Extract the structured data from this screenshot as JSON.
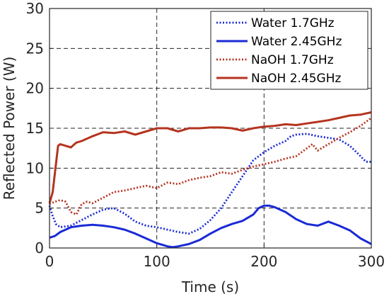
{
  "chart_data": {
    "type": "line",
    "title": "",
    "xlabel": "Time (s)",
    "ylabel": "Reflected Power (W)",
    "xlim": [
      0,
      300
    ],
    "ylim": [
      0,
      30
    ],
    "xticks": [
      0,
      100,
      200,
      300
    ],
    "yticks": [
      0,
      5,
      10,
      15,
      20,
      25,
      30
    ],
    "grid": true,
    "legend_position": "top-right",
    "series": [
      {
        "name": "Water 1.7GHz",
        "color": "#1a2bd6",
        "style": "dotted",
        "x": [
          0,
          3,
          6,
          10,
          20,
          30,
          40,
          50,
          60,
          70,
          80,
          90,
          100,
          110,
          120,
          130,
          140,
          150,
          160,
          170,
          180,
          190,
          200,
          210,
          220,
          225,
          230,
          240,
          250,
          260,
          270,
          280,
          290,
          295,
          300
        ],
        "y": [
          5.3,
          4.0,
          3.0,
          2.6,
          2.8,
          3.5,
          4.2,
          4.8,
          5.0,
          4.3,
          3.3,
          2.8,
          2.6,
          2.3,
          2.0,
          1.8,
          2.4,
          3.5,
          5.0,
          7.0,
          9.0,
          11.0,
          12.0,
          12.8,
          13.4,
          14.0,
          14.2,
          14.3,
          14.0,
          13.8,
          13.6,
          12.8,
          11.5,
          10.8,
          10.8
        ]
      },
      {
        "name": "Water 2.45GHz",
        "color": "#1a2bd6",
        "style": "solid",
        "x": [
          0,
          5,
          10,
          20,
          30,
          40,
          50,
          60,
          70,
          80,
          90,
          100,
          110,
          115,
          120,
          130,
          140,
          150,
          160,
          170,
          180,
          190,
          195,
          200,
          205,
          210,
          220,
          230,
          240,
          250,
          260,
          270,
          280,
          290,
          300
        ],
        "y": [
          1.3,
          1.5,
          2.0,
          2.6,
          2.8,
          2.9,
          2.8,
          2.6,
          2.3,
          1.8,
          1.2,
          0.6,
          0.2,
          0.1,
          0.2,
          0.5,
          1.0,
          1.8,
          2.5,
          3.0,
          3.4,
          4.2,
          5.0,
          5.3,
          5.3,
          5.1,
          4.5,
          3.6,
          3.0,
          2.8,
          3.3,
          2.8,
          2.2,
          1.2,
          0.5
        ]
      },
      {
        "name": "NaOH 1.7GHz",
        "color": "#b5341f",
        "style": "dotted",
        "x": [
          0,
          5,
          10,
          15,
          20,
          25,
          30,
          35,
          40,
          50,
          60,
          70,
          80,
          90,
          100,
          110,
          120,
          130,
          140,
          150,
          160,
          170,
          180,
          190,
          200,
          210,
          220,
          230,
          240,
          245,
          250,
          260,
          270,
          280,
          290,
          300
        ],
        "y": [
          5.5,
          5.8,
          6.0,
          5.8,
          4.5,
          4.2,
          5.5,
          5.8,
          5.6,
          6.3,
          7.0,
          7.2,
          7.5,
          7.8,
          7.5,
          8.2,
          8.0,
          8.5,
          8.8,
          9.0,
          9.5,
          9.3,
          9.8,
          10.2,
          10.5,
          10.8,
          11.2,
          11.5,
          12.5,
          13.0,
          12.2,
          13.0,
          13.8,
          14.5,
          15.3,
          16.3
        ]
      },
      {
        "name": "NaOH 2.45GHz",
        "color": "#b5341f",
        "style": "solid",
        "x": [
          0,
          3,
          6,
          8,
          10,
          15,
          20,
          25,
          30,
          40,
          50,
          60,
          70,
          80,
          90,
          100,
          110,
          120,
          130,
          140,
          150,
          160,
          170,
          180,
          190,
          200,
          210,
          220,
          230,
          240,
          250,
          260,
          270,
          280,
          290,
          300
        ],
        "y": [
          5.6,
          7.0,
          10.5,
          12.8,
          13.0,
          12.8,
          12.6,
          13.2,
          13.4,
          14.0,
          14.5,
          14.4,
          14.6,
          14.2,
          14.6,
          15.0,
          15.0,
          14.6,
          15.0,
          15.0,
          15.1,
          15.1,
          15.0,
          14.7,
          15.0,
          15.2,
          15.3,
          15.5,
          15.4,
          15.6,
          15.8,
          16.0,
          16.3,
          16.6,
          16.7,
          17.0
        ]
      }
    ]
  }
}
